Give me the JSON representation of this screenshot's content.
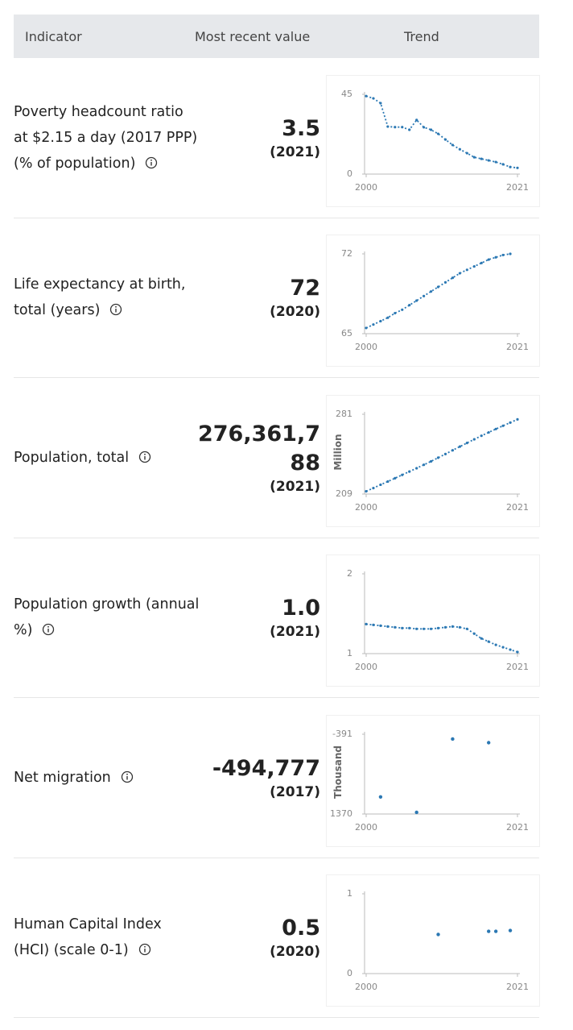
{
  "header": {
    "indicator": "Indicator",
    "value": "Most recent value",
    "trend": "Trend"
  },
  "rows": [
    {
      "indicator": "Poverty headcount ratio at $2.15 a day (2017 PPP) (% of population)",
      "value": "3.5",
      "year": "(2021)",
      "trend": {
        "type": "line",
        "color": "#2b78b3",
        "xlim": [
          2000,
          2021
        ],
        "xticks": [
          2000,
          2021
        ],
        "ylim": [
          0,
          45
        ],
        "yticks": [
          0,
          45
        ],
        "x": [
          2000,
          2001,
          2002,
          2003,
          2004,
          2005,
          2006,
          2007,
          2008,
          2009,
          2010,
          2011,
          2012,
          2013,
          2014,
          2015,
          2016,
          2017,
          2018,
          2019,
          2020,
          2021
        ],
        "values": [
          44,
          42.7,
          40,
          26.8,
          26.5,
          26.5,
          25,
          30.5,
          26.4,
          25,
          22.7,
          19.5,
          16.4,
          14,
          11.8,
          9.5,
          8.6,
          7.7,
          6.8,
          5.5,
          4,
          3.5
        ]
      }
    },
    {
      "indicator": "Life expectancy at birth, total (years)",
      "value": "72",
      "year": "(2020)",
      "trend": {
        "type": "line",
        "color": "#2b78b3",
        "xlim": [
          2000,
          2021
        ],
        "xticks": [
          2000,
          2021
        ],
        "ylim": [
          65,
          72
        ],
        "yticks": [
          65,
          72
        ],
        "x": [
          2000,
          2001,
          2002,
          2003,
          2004,
          2005,
          2006,
          2007,
          2008,
          2009,
          2010,
          2011,
          2012,
          2013,
          2014,
          2015,
          2016,
          2017,
          2018,
          2019,
          2020
        ],
        "values": [
          65.5,
          65.8,
          66.1,
          66.4,
          66.8,
          67.1,
          67.5,
          67.9,
          68.3,
          68.7,
          69.1,
          69.5,
          69.9,
          70.3,
          70.6,
          70.9,
          71.2,
          71.5,
          71.7,
          71.9,
          72
        ]
      }
    },
    {
      "indicator": "Population, total",
      "value": "276,361,788",
      "year": "(2021)",
      "trend": {
        "type": "line",
        "color": "#2b78b3",
        "unit": "Million",
        "xlim": [
          2000,
          2021
        ],
        "xticks": [
          2000,
          2021
        ],
        "ylim": [
          209,
          281
        ],
        "yticks": [
          209,
          281
        ],
        "x": [
          2000,
          2001,
          2002,
          2003,
          2004,
          2005,
          2006,
          2007,
          2008,
          2009,
          2010,
          2011,
          2012,
          2013,
          2014,
          2015,
          2016,
          2017,
          2018,
          2019,
          2020,
          2021
        ],
        "values": [
          211.5,
          214.4,
          217.4,
          220.3,
          223.3,
          226.3,
          229.3,
          232.3,
          235.4,
          238.5,
          241.8,
          245.1,
          248.5,
          251.8,
          255.1,
          258.4,
          261.6,
          264.6,
          267.7,
          270.6,
          273.5,
          276.4
        ]
      }
    },
    {
      "indicator": "Population growth (annual %)",
      "value": "1.0",
      "year": "(2021)",
      "trend": {
        "type": "line",
        "color": "#2b78b3",
        "xlim": [
          2000,
          2021
        ],
        "xticks": [
          2000,
          2021
        ],
        "ylim": [
          1,
          2
        ],
        "yticks": [
          1,
          2
        ],
        "x": [
          2000,
          2001,
          2002,
          2003,
          2004,
          2005,
          2006,
          2007,
          2008,
          2009,
          2010,
          2011,
          2012,
          2013,
          2014,
          2015,
          2016,
          2017,
          2018,
          2019,
          2020,
          2021
        ],
        "values": [
          1.37,
          1.36,
          1.35,
          1.34,
          1.33,
          1.32,
          1.32,
          1.31,
          1.31,
          1.31,
          1.32,
          1.33,
          1.34,
          1.33,
          1.31,
          1.25,
          1.19,
          1.15,
          1.11,
          1.08,
          1.05,
          1.02
        ]
      }
    },
    {
      "indicator": "Net migration",
      "value": "-494,777",
      "year": "(2017)",
      "trend": {
        "type": "scatter",
        "color": "#2b78b3",
        "unit": "Thousand",
        "xlim": [
          2000,
          2021
        ],
        "xticks": [
          2000,
          2021
        ],
        "ylim": [
          -1370,
          -391
        ],
        "yticks": [
          {
            "value": -1370,
            "label": "1370"
          },
          -391
        ],
        "x": [
          2002,
          2007,
          2012,
          2017
        ],
        "values": [
          -1160,
          -1350,
          -450,
          -494.777
        ]
      }
    },
    {
      "indicator": "Human Capital Index (HCI) (scale 0-1)",
      "value": "0.5",
      "year": "(2020)",
      "trend": {
        "type": "scatter",
        "color": "#2b78b3",
        "xlim": [
          2000,
          2021
        ],
        "xticks": [
          2000,
          2021
        ],
        "ylim": [
          0,
          1
        ],
        "yticks": [
          0,
          1
        ],
        "x": [
          2010,
          2017,
          2018,
          2020
        ],
        "values": [
          0.49,
          0.53,
          0.53,
          0.54
        ]
      }
    }
  ]
}
